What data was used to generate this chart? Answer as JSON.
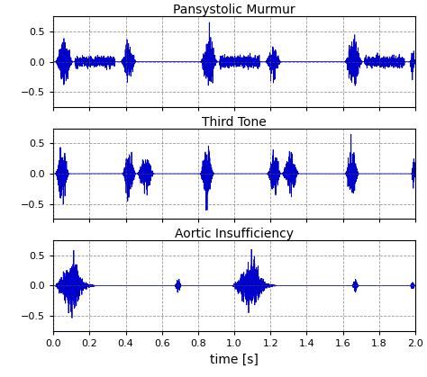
{
  "titles": [
    "Pansystolic Murmur",
    "Third Tone",
    "Aortic Insufficiency"
  ],
  "xlabel": "time [s]",
  "xlim": [
    0,
    2
  ],
  "ylim": [
    -0.75,
    0.75
  ],
  "yticks": [
    -0.5,
    0,
    0.5
  ],
  "xticks": [
    0,
    0.2,
    0.4,
    0.6,
    0.8,
    1.0,
    1.2,
    1.4,
    1.6,
    1.8,
    2.0
  ],
  "line_color": "#0000CC",
  "grid_color": "#555555",
  "background_color": "#FFFFFF",
  "fs": 4000,
  "duration": 2.0,
  "title_fontsize": 10,
  "axis_label_fontsize": 10,
  "tick_fontsize": 8,
  "figsize": [
    4.74,
    4.19
  ],
  "dpi": 100
}
